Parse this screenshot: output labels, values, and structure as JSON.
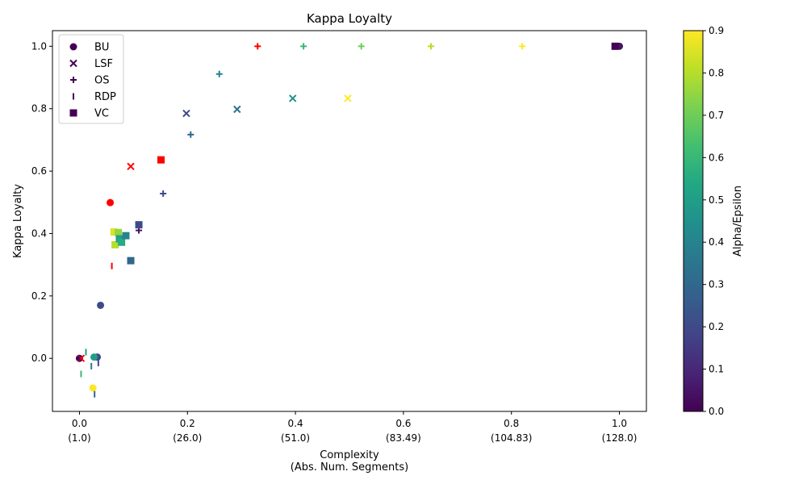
{
  "chart_data": {
    "type": "scatter",
    "title": "Kappa Loyalty",
    "xlabel_line1": "Complexity",
    "xlabel_line2": "(Abs. Num. Segments)",
    "ylabel": "Kappa Loyalty",
    "xlim": [
      -0.05,
      1.05
    ],
    "ylim": [
      -0.17,
      1.05
    ],
    "x_ticks": [
      {
        "value": 0.0,
        "line1": "0.0",
        "line2": "(1.0)"
      },
      {
        "value": 0.2,
        "line1": "0.2",
        "line2": "(26.0)"
      },
      {
        "value": 0.4,
        "line1": "0.4",
        "line2": "(51.0)"
      },
      {
        "value": 0.6,
        "line1": "0.6",
        "line2": "(83.49)"
      },
      {
        "value": 0.8,
        "line1": "0.8",
        "line2": "(104.83)"
      },
      {
        "value": 1.0,
        "line1": "1.0",
        "line2": "(128.0)"
      }
    ],
    "y_ticks": [
      {
        "value": 0.0,
        "label": "0.0"
      },
      {
        "value": 0.2,
        "label": "0.2"
      },
      {
        "value": 0.4,
        "label": "0.4"
      },
      {
        "value": 0.6,
        "label": "0.6"
      },
      {
        "value": 0.8,
        "label": "0.8"
      },
      {
        "value": 1.0,
        "label": "1.0"
      }
    ],
    "legend": {
      "position": "upper-left",
      "entries": [
        {
          "label": "BU",
          "marker": "circle"
        },
        {
          "label": "LSF",
          "marker": "x"
        },
        {
          "label": "OS",
          "marker": "plus"
        },
        {
          "label": "RDP",
          "marker": "vline"
        },
        {
          "label": "VC",
          "marker": "square"
        }
      ]
    },
    "colorbar": {
      "label": "Alpha/Epsilon",
      "colormap": "viridis",
      "range": [
        0.0,
        0.9
      ],
      "ticks": [
        {
          "value": 0.0,
          "label": "0.0"
        },
        {
          "value": 0.1,
          "label": "0.1"
        },
        {
          "value": 0.2,
          "label": "0.2"
        },
        {
          "value": 0.3,
          "label": "0.3"
        },
        {
          "value": 0.4,
          "label": "0.4"
        },
        {
          "value": 0.5,
          "label": "0.5"
        },
        {
          "value": 0.6,
          "label": "0.6"
        },
        {
          "value": 0.7,
          "label": "0.7"
        },
        {
          "value": 0.8,
          "label": "0.8"
        },
        {
          "value": 0.9,
          "label": "0.9"
        }
      ]
    },
    "baseline_color": "#ff0000",
    "series": [
      {
        "name": "BU",
        "marker": "circle",
        "points": [
          {
            "x": 0.0,
            "y": 0.0,
            "c": 0.0
          },
          {
            "x": 0.033,
            "y": 0.004,
            "c": 0.2
          },
          {
            "x": 0.027,
            "y": 0.004,
            "c": 0.5
          },
          {
            "x": 0.039,
            "y": 0.17,
            "c": 0.2
          },
          {
            "x": 0.057,
            "y": 0.499,
            "c": null
          },
          {
            "x": 1.0,
            "y": 1.0,
            "c": 0.05
          },
          {
            "x": 0.025,
            "y": -0.095,
            "c": 0.9
          }
        ]
      },
      {
        "name": "LSF",
        "marker": "x",
        "points": [
          {
            "x": 0.003,
            "y": 0.0,
            "c": null
          },
          {
            "x": 0.095,
            "y": 0.615,
            "c": null
          },
          {
            "x": 0.198,
            "y": 0.785,
            "c": 0.2
          },
          {
            "x": 0.292,
            "y": 0.798,
            "c": 0.35
          },
          {
            "x": 0.395,
            "y": 0.833,
            "c": 0.45
          },
          {
            "x": 0.497,
            "y": 0.833,
            "c": 0.9
          }
        ]
      },
      {
        "name": "OS",
        "marker": "plus",
        "points": [
          {
            "x": 0.11,
            "y": 0.41,
            "c": 0.05
          },
          {
            "x": 0.155,
            "y": 0.528,
            "c": 0.2
          },
          {
            "x": 0.206,
            "y": 0.717,
            "c": 0.3
          },
          {
            "x": 0.259,
            "y": 0.911,
            "c": 0.4
          },
          {
            "x": 0.33,
            "y": 1.0,
            "c": null
          },
          {
            "x": 0.415,
            "y": 1.0,
            "c": 0.6
          },
          {
            "x": 0.522,
            "y": 1.0,
            "c": 0.7
          },
          {
            "x": 0.651,
            "y": 1.0,
            "c": 0.8
          },
          {
            "x": 0.82,
            "y": 1.0,
            "c": 0.9
          }
        ]
      },
      {
        "name": "RDP",
        "marker": "vline",
        "points": [
          {
            "x": 0.0,
            "y": 0.0,
            "c": 0.05
          },
          {
            "x": 0.012,
            "y": 0.02,
            "c": 0.5
          },
          {
            "x": 0.003,
            "y": -0.05,
            "c": 0.6
          },
          {
            "x": 0.022,
            "y": -0.025,
            "c": 0.4
          },
          {
            "x": 0.035,
            "y": -0.015,
            "c": 0.2
          },
          {
            "x": 0.028,
            "y": -0.115,
            "c": 0.3
          },
          {
            "x": 0.06,
            "y": 0.296,
            "c": null
          }
        ]
      },
      {
        "name": "VC",
        "marker": "square",
        "points": [
          {
            "x": 0.064,
            "y": 0.405,
            "c": 0.85
          },
          {
            "x": 0.072,
            "y": 0.403,
            "c": 0.75
          },
          {
            "x": 0.066,
            "y": 0.364,
            "c": 0.8
          },
          {
            "x": 0.074,
            "y": 0.383,
            "c": 0.5
          },
          {
            "x": 0.078,
            "y": 0.372,
            "c": 0.55
          },
          {
            "x": 0.086,
            "y": 0.393,
            "c": 0.4
          },
          {
            "x": 0.095,
            "y": 0.313,
            "c": 0.3
          },
          {
            "x": 0.11,
            "y": 0.428,
            "c": 0.2
          },
          {
            "x": 0.151,
            "y": 0.636,
            "c": null
          },
          {
            "x": 0.992,
            "y": 1.0,
            "c": 0.0
          }
        ]
      }
    ]
  }
}
